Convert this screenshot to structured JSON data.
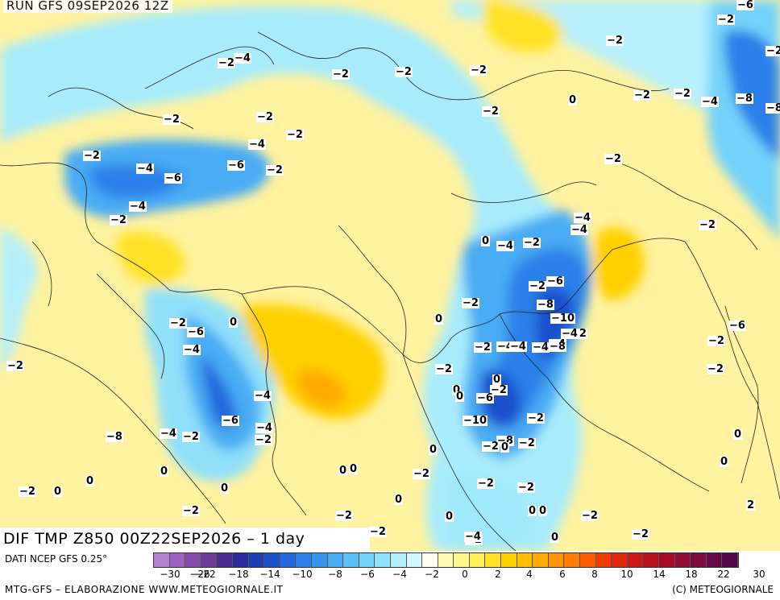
{
  "header": {
    "run_title": "RUN GFS 09SEP2026 12Z"
  },
  "map": {
    "caption": "DIF TMP Z850 00Z22SEP2026 – 1 day",
    "labels": [
      "-2",
      "-4",
      "-2",
      "-2",
      "-2",
      "-2",
      "-2",
      "-2",
      "0",
      "-2",
      "-6",
      "-2",
      "-2",
      "-2",
      "-4",
      "-8",
      "-8",
      "-2",
      "-2",
      "-2",
      "-4",
      "-2",
      "-4",
      "-6",
      "-2",
      "-4",
      "-6",
      "-2",
      "-2",
      "-4",
      "-2",
      "0",
      "-2",
      "-4",
      "-2",
      "-2",
      "0",
      "-4",
      "-4",
      "-2",
      "-6",
      "-2",
      "-8",
      "-10",
      "-2",
      "-4",
      "0",
      "-2",
      "-6",
      "-4",
      "-2",
      "-4",
      "-4",
      "-8",
      "-4",
      "-2",
      "0",
      "-2",
      "0",
      "0",
      "-2",
      "-6",
      "-10",
      "-8",
      "-6",
      "-2",
      "0",
      "-4",
      "-4",
      "-6",
      "-2",
      "0",
      "-2",
      "-2",
      "-2",
      "-8",
      "-4",
      "0",
      "0",
      "0",
      "-2",
      "0",
      "-2",
      "-2",
      "0",
      "0",
      "-2",
      "0",
      "-2",
      "0",
      "-2",
      "-2",
      "0",
      "-2",
      "0",
      "0",
      "-4",
      "0",
      "0",
      "-2",
      "2"
    ]
  },
  "legend": {
    "data_source": "DATI NCEP GFS 0.25°",
    "footer_left": "MTG-GFS – ELABORAZIONE WWW.METEOGIORNALE.IT",
    "footer_right": "(C) METEOGIORNALE",
    "colors": [
      "#b482d2",
      "#9c64c0",
      "#8450ac",
      "#6c3c98",
      "#4a2c90",
      "#2c2c9c",
      "#1e3cb4",
      "#1e50cc",
      "#2468dc",
      "#2c80e8",
      "#3896f0",
      "#48acf4",
      "#5cc0f8",
      "#74d2fa",
      "#92e2fc",
      "#b2eefc",
      "#d2f8fa",
      "#fffff0",
      "#fffcb4",
      "#fff68c",
      "#fff05a",
      "#ffe228",
      "#ffd000",
      "#ffbe00",
      "#ffaa00",
      "#ff9400",
      "#ff7c00",
      "#ff5c00",
      "#f03c00",
      "#e02810",
      "#cc1818",
      "#b8101c",
      "#a40c28",
      "#900c34",
      "#7c0c40",
      "#680844",
      "#540848"
    ],
    "ticks": [
      "-30",
      "-26",
      "-22",
      "-18",
      "-14",
      "-10",
      "-8",
      "-6",
      "-4",
      "-2",
      "0",
      "2",
      "4",
      "6",
      "8",
      "10",
      "14",
      "18",
      "22",
      "30"
    ]
  }
}
